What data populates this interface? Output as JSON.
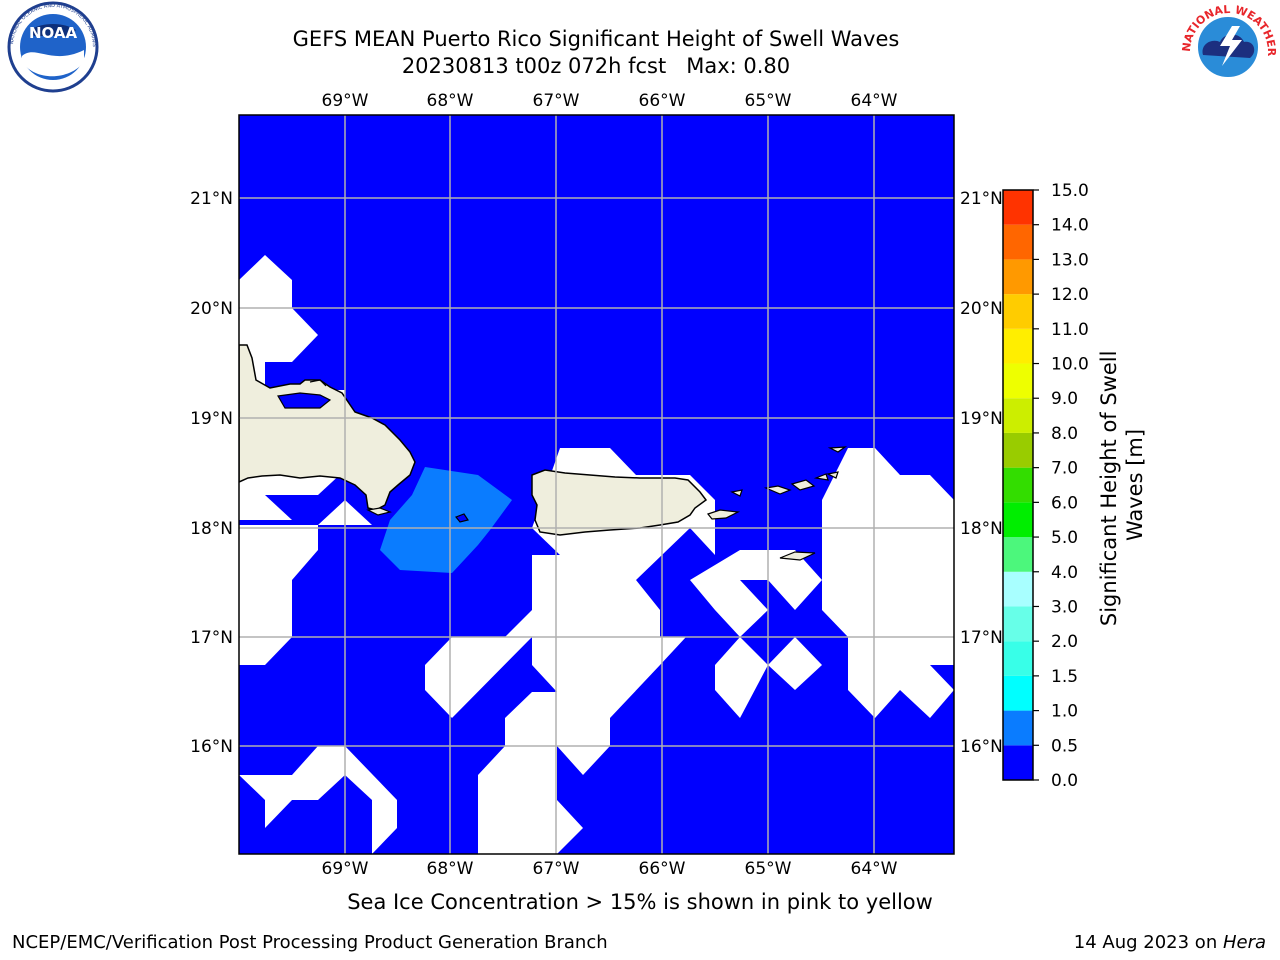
{
  "title": {
    "line1": "GEFS MEAN Puerto Rico Significant Height of Swell Waves",
    "line2": "20230813 t00z 072h fcst   Max: 0.80"
  },
  "logos": {
    "noaa_text": "NOAA",
    "noaa_ring": "NATIONAL OCEANIC AND ATMOSPHERIC ADMINISTRATION · U.S. DEPARTMENT OF COMMERCE",
    "nws_ring": "NATIONAL WEATHER SERVICE"
  },
  "map": {
    "lon_ticks": [
      "69°W",
      "68°W",
      "67°W",
      "66°W",
      "65°W",
      "64°W"
    ],
    "lat_ticks": [
      "21°N",
      "20°N",
      "19°N",
      "18°N",
      "17°N",
      "16°N"
    ],
    "land_color": "#efeedd",
    "ocean_color": "#0000ff",
    "swell_color": "#0a7cff",
    "missing_color": "#ffffff",
    "grid_color": "#b0b0b0"
  },
  "colorbar": {
    "label": "Significant Height of Swell Waves [m]",
    "levels": [
      "0.0",
      "0.5",
      "1.0",
      "1.5",
      "2.0",
      "3.0",
      "4.0",
      "5.0",
      "6.0",
      "7.0",
      "8.0",
      "9.0",
      "10.0",
      "11.0",
      "12.0",
      "13.0",
      "14.0",
      "15.0"
    ],
    "colors": [
      "#0000ff",
      "#0a7cff",
      "#00ffff",
      "#38ffe8",
      "#67ffe8",
      "#a8ffff",
      "#4cf77c",
      "#00ee00",
      "#33dd00",
      "#99cc00",
      "#ccee00",
      "#eeff00",
      "#ffee00",
      "#ffcc00",
      "#ff9900",
      "#ff6600",
      "#ff3300",
      "#ff0000"
    ]
  },
  "ice_note": "Sea Ice Concentration > 15% is shown in pink to yellow",
  "footer": {
    "left": "NCEP/EMC/Verification Post Processing Product Generation Branch",
    "right_prefix": "14 Aug 2023 on ",
    "right_machine": "Hera"
  }
}
